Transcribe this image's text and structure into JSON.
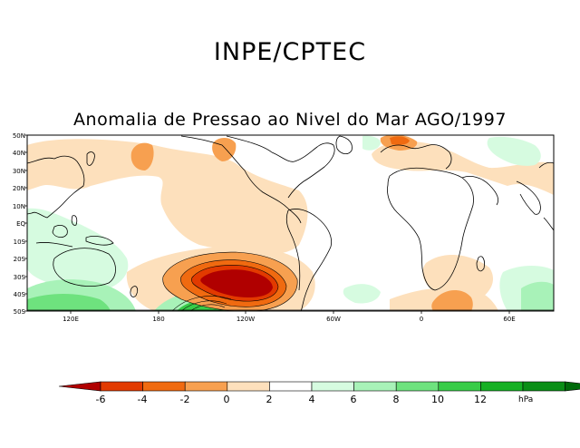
{
  "header": {
    "title": "INPE/CPTEC",
    "subtitle": "Anomalia de Pressao ao Nivel do Mar AGO/1997"
  },
  "map": {
    "lat_labels": [
      "50N",
      "40N",
      "30N",
      "20N",
      "10N",
      "EQ",
      "10S",
      "20S",
      "30S",
      "40S",
      "50S"
    ],
    "lon_labels": [
      "120E",
      "180",
      "120W",
      "60W",
      "0",
      "60E"
    ]
  },
  "colorbar": {
    "labels": [
      "-6",
      "-4",
      "-2",
      "0",
      "2",
      "4",
      "6",
      "8",
      "10",
      "12"
    ],
    "unit": "hPa",
    "colors": [
      "#b00000",
      "#e23a00",
      "#f06a10",
      "#f7a050",
      "#fde0bc",
      "#ffffff",
      "#d6fbe0",
      "#a8f2b8",
      "#6ee27e",
      "#38cc48",
      "#16b024",
      "#0a8e16",
      "#006a0a"
    ]
  }
}
